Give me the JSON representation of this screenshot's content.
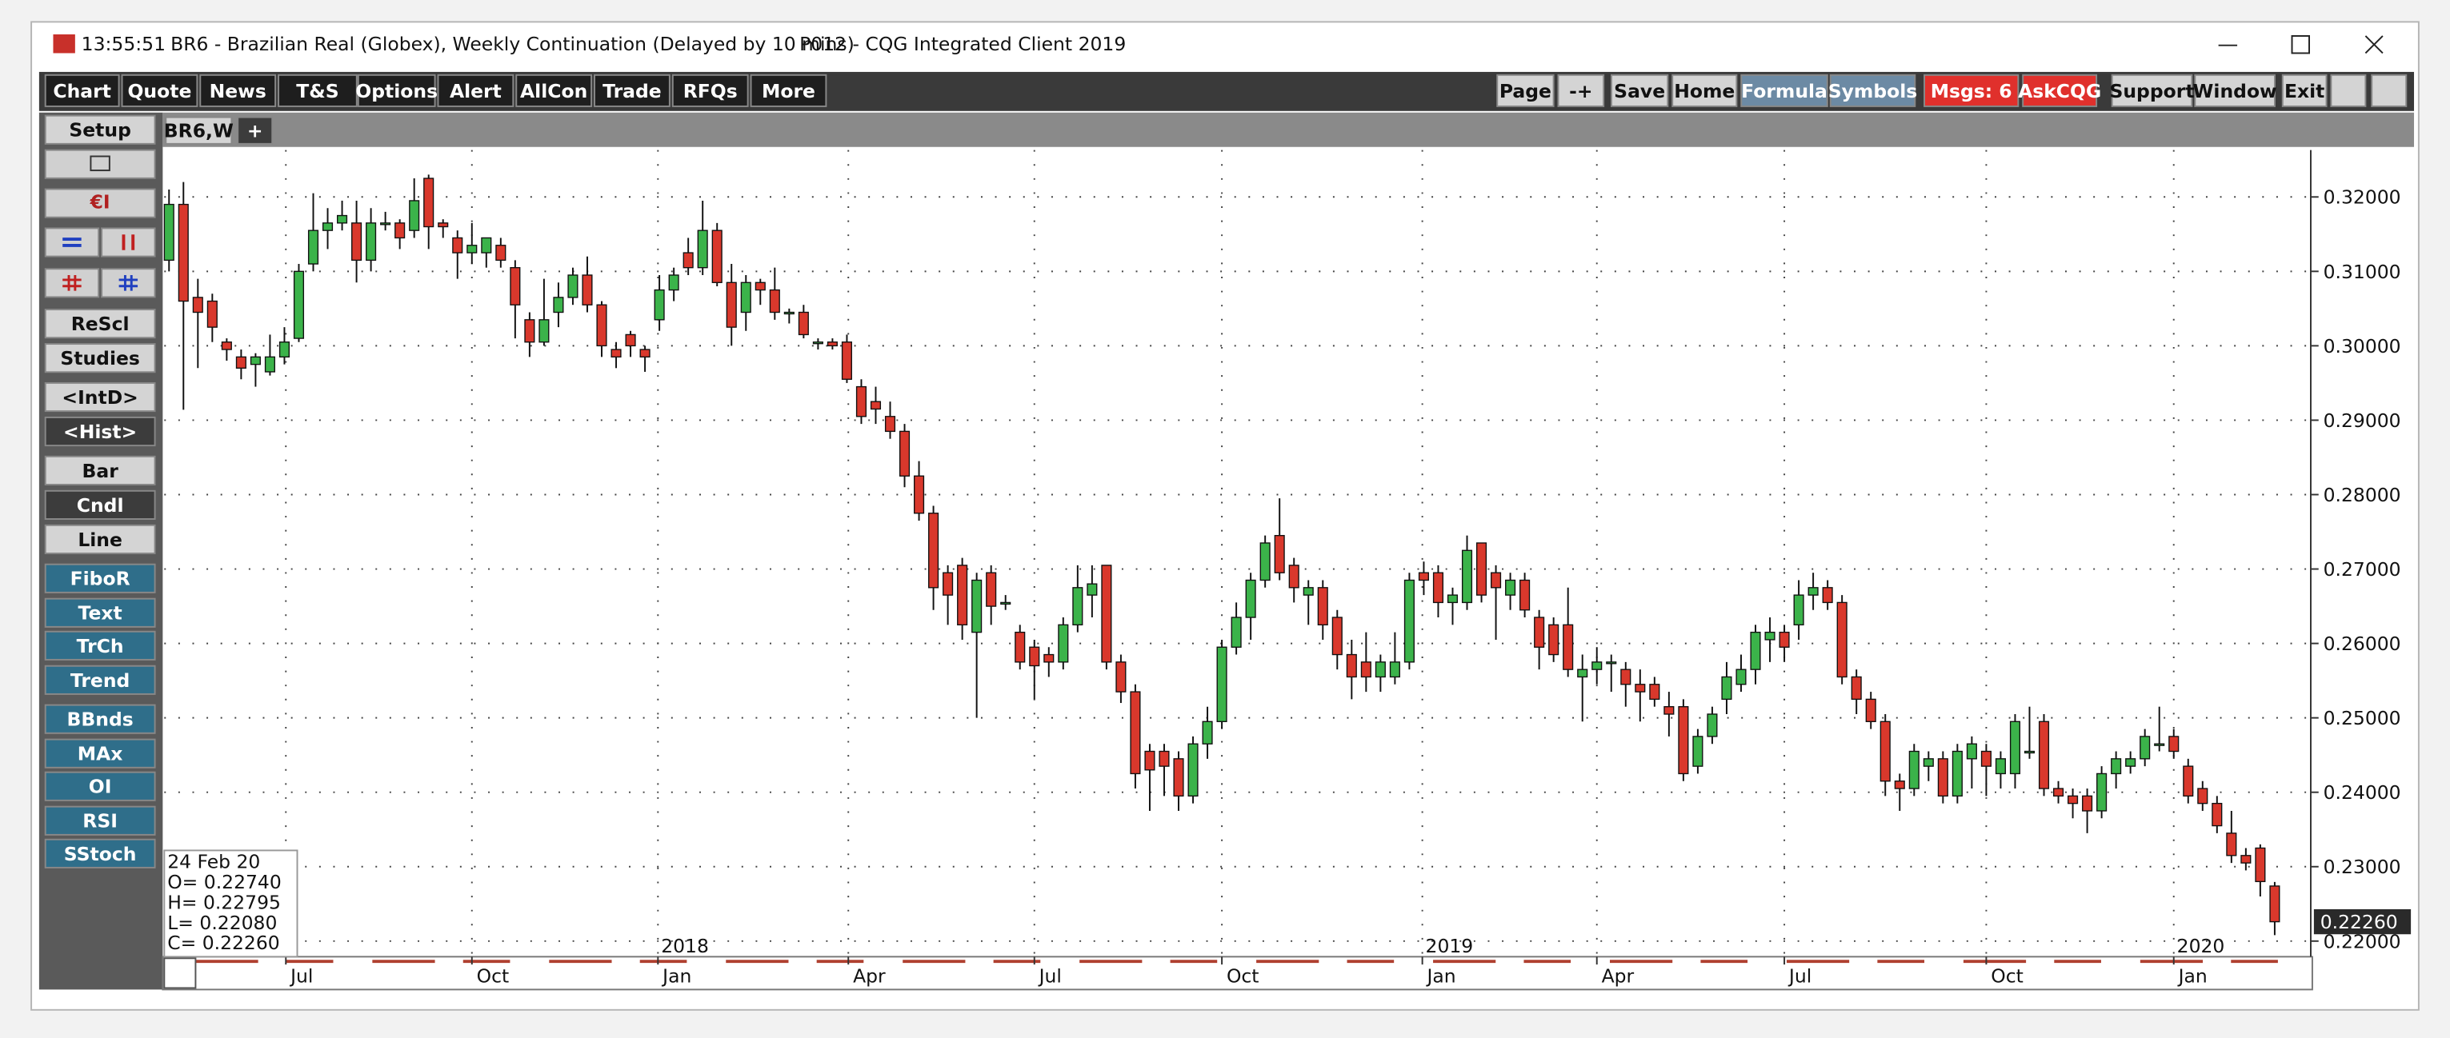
{
  "window": {
    "time": "13:55:51",
    "symbol_title": "BR6 - Brazilian Real (Globex), Weekly Continuation (Delayed by 10 mins)",
    "app_title": "P012 - CQG Integrated Client 2019"
  },
  "toolbar": {
    "left": [
      "Chart",
      "Quote",
      "News",
      "T&S",
      "Options",
      "Alert",
      "AllCon",
      "Trade",
      "RFQs",
      "More"
    ],
    "right": [
      "Page",
      "-+",
      "Save",
      "Home",
      "Formula",
      "Symbols",
      "Msgs: 6",
      "AskCQG",
      "Support",
      "Window",
      "Exit"
    ]
  },
  "tabs": [
    "BR6,W",
    "+"
  ],
  "sidebar": [
    "Setup",
    "ReScl",
    "Studies",
    "<IntD>",
    "<Hist>",
    "Bar",
    "Cndl",
    "Line",
    "FiboR",
    "Text",
    "TrCh",
    "Trend",
    "BBnds",
    "MAx",
    "OI",
    "RSI",
    "SStoch"
  ],
  "chart_data": {
    "type": "candlestick",
    "up_color": "#3bb34a",
    "down_color": "#d9382c",
    "grid": true,
    "ylim": [
      0.2179,
      0.3263
    ],
    "yticks": [
      {
        "value": 0.22,
        "label": "0.22000"
      },
      {
        "value": 0.23,
        "label": "0.23000"
      },
      {
        "value": 0.24,
        "label": "0.24000"
      },
      {
        "value": 0.25,
        "label": "0.25000"
      },
      {
        "value": 0.26,
        "label": "0.26000"
      },
      {
        "value": 0.27,
        "label": "0.27000"
      },
      {
        "value": 0.28,
        "label": "0.28000"
      },
      {
        "value": 0.29,
        "label": "0.29000"
      },
      {
        "value": 0.3,
        "label": "0.30000"
      },
      {
        "value": 0.31,
        "label": "0.31000"
      },
      {
        "value": 0.32,
        "label": "0.32000"
      }
    ],
    "xlim": [
      -0.33,
      148.5
    ],
    "xticks": [
      {
        "value": 8.1,
        "label": "Jul"
      },
      {
        "value": 21,
        "label": "Oct"
      },
      {
        "value": 33.9,
        "label": "Jan"
      },
      {
        "value": 47.1,
        "label": "Apr"
      },
      {
        "value": 60,
        "label": "Jul"
      },
      {
        "value": 73,
        "label": "Oct"
      },
      {
        "value": 86.9,
        "label": "Jan"
      },
      {
        "value": 99,
        "label": "Apr"
      },
      {
        "value": 112,
        "label": "Jul"
      },
      {
        "value": 126,
        "label": "Oct"
      },
      {
        "value": 139,
        "label": "Jan"
      }
    ],
    "year_markers": [
      {
        "value": 33.9,
        "label": "2018"
      },
      {
        "value": 86.9,
        "label": "2019"
      },
      {
        "value": 139,
        "label": "2020"
      }
    ],
    "open": [
      0.3115,
      0.319,
      0.3065,
      0.306,
      0.3005,
      0.2985,
      0.2975,
      0.2965,
      0.2985,
      0.301,
      0.311,
      0.3155,
      0.3165,
      0.3165,
      0.3115,
      0.3165,
      0.3165,
      0.3155,
      0.3225,
      0.3165,
      0.3145,
      0.3125,
      0.3125,
      0.3135,
      0.3105,
      0.3035,
      0.3005,
      0.3045,
      0.3065,
      0.3095,
      0.3055,
      0.2995,
      0.3015,
      0.2995,
      0.3035,
      0.3075,
      0.3125,
      0.3105,
      0.3155,
      0.3085,
      0.3045,
      0.3085,
      0.3075,
      0.3045,
      0.3045,
      0.3005,
      0.3005,
      0.3005,
      0.2945,
      0.2925,
      0.2905,
      0.2885,
      0.2825,
      0.2775,
      0.2695,
      0.2705,
      0.2615,
      0.2695,
      0.2655,
      0.2615,
      0.2595,
      0.2585,
      0.2575,
      0.2625,
      0.2665,
      0.2705,
      0.2575,
      0.2535,
      0.2455,
      0.2455,
      0.2445,
      0.2395,
      0.2465,
      0.2495,
      0.2595,
      0.2635,
      0.2685,
      0.2745,
      0.2705,
      0.2665,
      0.2675,
      0.2635,
      0.2585,
      0.2575,
      0.2555,
      0.2555,
      0.2575,
      0.2695,
      0.2695,
      0.2655,
      0.2655,
      0.2735,
      0.2695,
      0.2665,
      0.2685,
      0.2635,
      0.2625,
      0.2625,
      0.2555,
      0.2565,
      0.2575,
      0.2565,
      0.2545,
      0.2545,
      0.2515,
      0.2515,
      0.2435,
      0.2475,
      0.2525,
      0.2545,
      0.2565,
      0.2605,
      0.2615,
      0.2625,
      0.2665,
      0.2675,
      0.2655,
      0.2555,
      0.2525,
      0.2495,
      0.2415,
      0.2405,
      0.2435,
      0.2445,
      0.2395,
      0.2445,
      0.2455,
      0.2425,
      0.2425,
      0.2455,
      0.2495,
      0.2405,
      0.2395,
      0.2395,
      0.2375,
      0.2425,
      0.2435,
      0.2445,
      0.2465,
      0.2475,
      0.2435,
      0.2405,
      0.2385,
      0.2345,
      0.2315,
      0.2325,
      0.2274
    ],
    "high": [
      0.321,
      0.322,
      0.309,
      0.307,
      0.301,
      0.2995,
      0.299,
      0.3015,
      0.3025,
      0.311,
      0.3205,
      0.3185,
      0.3195,
      0.3195,
      0.3185,
      0.318,
      0.317,
      0.3225,
      0.323,
      0.317,
      0.3155,
      0.3165,
      0.3145,
      0.3145,
      0.3115,
      0.3045,
      0.309,
      0.3085,
      0.3105,
      0.312,
      0.306,
      0.3005,
      0.302,
      0.3,
      0.3095,
      0.3105,
      0.3145,
      0.3195,
      0.3165,
      0.311,
      0.3095,
      0.309,
      0.3105,
      0.305,
      0.3055,
      0.301,
      0.301,
      0.3015,
      0.2955,
      0.2945,
      0.2925,
      0.2895,
      0.2845,
      0.2785,
      0.2705,
      0.2715,
      0.2695,
      0.2705,
      0.2665,
      0.2625,
      0.2605,
      0.2595,
      0.2635,
      0.2705,
      0.2705,
      0.2705,
      0.2585,
      0.2545,
      0.2465,
      0.2465,
      0.2455,
      0.2475,
      0.2515,
      0.2605,
      0.2655,
      0.2695,
      0.2745,
      0.2795,
      0.2715,
      0.2685,
      0.2685,
      0.2645,
      0.2605,
      0.2615,
      0.2585,
      0.2615,
      0.2695,
      0.271,
      0.2705,
      0.2675,
      0.2745,
      0.2735,
      0.2705,
      0.2695,
      0.2695,
      0.2645,
      0.2635,
      0.2675,
      0.2585,
      0.2595,
      0.2585,
      0.2575,
      0.2565,
      0.2555,
      0.2535,
      0.2525,
      0.2485,
      0.2515,
      0.2575,
      0.2585,
      0.2625,
      0.2635,
      0.2625,
      0.2685,
      0.2695,
      0.2685,
      0.2665,
      0.2565,
      0.2535,
      0.2505,
      0.2425,
      0.2465,
      0.2455,
      0.2455,
      0.2465,
      0.2475,
      0.2465,
      0.2455,
      0.2505,
      0.2515,
      0.2505,
      0.2415,
      0.2405,
      0.2405,
      0.2435,
      0.2455,
      0.2455,
      0.2485,
      0.2515,
      0.2485,
      0.2445,
      0.2415,
      0.2395,
      0.2375,
      0.2325,
      0.233,
      0.22795
    ],
    "low": [
      0.31,
      0.2914,
      0.297,
      0.3005,
      0.298,
      0.2955,
      0.2945,
      0.296,
      0.2975,
      0.3005,
      0.31,
      0.313,
      0.3155,
      0.3085,
      0.31,
      0.3155,
      0.313,
      0.3145,
      0.313,
      0.3145,
      0.309,
      0.311,
      0.3105,
      0.3105,
      0.301,
      0.2985,
      0.3,
      0.3025,
      0.3055,
      0.3045,
      0.2985,
      0.297,
      0.2985,
      0.2965,
      0.302,
      0.306,
      0.3095,
      0.3095,
      0.308,
      0.3,
      0.302,
      0.3055,
      0.3035,
      0.303,
      0.301,
      0.2995,
      0.2995,
      0.295,
      0.2895,
      0.2895,
      0.2875,
      0.281,
      0.2765,
      0.2645,
      0.2625,
      0.2605,
      0.25,
      0.2625,
      0.2645,
      0.2565,
      0.2525,
      0.2555,
      0.2565,
      0.2615,
      0.2635,
      0.2565,
      0.252,
      0.2405,
      0.2375,
      0.2395,
      0.2375,
      0.2385,
      0.2445,
      0.2485,
      0.2585,
      0.2605,
      0.2675,
      0.2685,
      0.2655,
      0.2625,
      0.2605,
      0.2565,
      0.2525,
      0.2535,
      0.2535,
      0.2545,
      0.2565,
      0.2665,
      0.2635,
      0.2625,
      0.2645,
      0.2655,
      0.2605,
      0.2645,
      0.2635,
      0.2565,
      0.2575,
      0.2555,
      0.2495,
      0.2545,
      0.2535,
      0.2515,
      0.2495,
      0.2515,
      0.2475,
      0.2415,
      0.2425,
      0.2465,
      0.2505,
      0.2535,
      0.2545,
      0.2575,
      0.2575,
      0.2605,
      0.2645,
      0.2645,
      0.2545,
      0.2505,
      0.2485,
      0.2395,
      0.2375,
      0.2395,
      0.2415,
      0.2385,
      0.2385,
      0.2405,
      0.2395,
      0.2405,
      0.2405,
      0.2445,
      0.2395,
      0.2385,
      0.2365,
      0.2345,
      0.2365,
      0.2405,
      0.2425,
      0.2435,
      0.2455,
      0.2445,
      0.2385,
      0.2375,
      0.2345,
      0.2305,
      0.2295,
      0.226,
      0.2208
    ],
    "close": [
      0.319,
      0.306,
      0.3045,
      0.3025,
      0.2995,
      0.297,
      0.2985,
      0.2985,
      0.3005,
      0.31,
      0.3155,
      0.3165,
      0.3175,
      0.3115,
      0.3165,
      0.3165,
      0.3145,
      0.3195,
      0.316,
      0.316,
      0.3125,
      0.3135,
      0.3145,
      0.3115,
      0.3055,
      0.3005,
      0.3035,
      0.3065,
      0.3095,
      0.3055,
      0.3,
      0.2985,
      0.3,
      0.2985,
      0.3075,
      0.3095,
      0.3105,
      0.3155,
      0.3085,
      0.3025,
      0.3085,
      0.3075,
      0.3045,
      0.3045,
      0.3015,
      0.3005,
      0.3,
      0.2955,
      0.2905,
      0.2915,
      0.2885,
      0.2825,
      0.2775,
      0.2675,
      0.2665,
      0.2625,
      0.2685,
      0.265,
      0.2655,
      0.2575,
      0.257,
      0.2575,
      0.2625,
      0.2675,
      0.268,
      0.2575,
      0.2535,
      0.2425,
      0.243,
      0.2435,
      0.2395,
      0.2465,
      0.2495,
      0.2595,
      0.2635,
      0.2685,
      0.2735,
      0.2695,
      0.2675,
      0.2675,
      0.2625,
      0.2585,
      0.2555,
      0.2555,
      0.2575,
      0.2575,
      0.2685,
      0.2685,
      0.2655,
      0.2665,
      0.2725,
      0.2665,
      0.2675,
      0.2685,
      0.2645,
      0.2595,
      0.2585,
      0.2565,
      0.2565,
      0.2575,
      0.2575,
      0.2545,
      0.2535,
      0.2525,
      0.2505,
      0.2425,
      0.2475,
      0.2505,
      0.2555,
      0.2565,
      0.2615,
      0.2615,
      0.2595,
      0.2665,
      0.2675,
      0.2655,
      0.2555,
      0.2525,
      0.2495,
      0.2415,
      0.2405,
      0.2455,
      0.2445,
      0.2395,
      0.2455,
      0.2465,
      0.2435,
      0.2445,
      0.2495,
      0.2455,
      0.2405,
      0.2395,
      0.2385,
      0.2375,
      0.2425,
      0.2445,
      0.2445,
      0.2475,
      0.2465,
      0.2455,
      0.2395,
      0.2385,
      0.2355,
      0.2315,
      0.2305,
      0.228,
      0.2226
    ],
    "last_label": "0.22260",
    "info_box": [
      "24 Feb 20",
      "O= 0.22740",
      "H= 0.22795",
      "L= 0.22080",
      "C= 0.22260"
    ]
  }
}
